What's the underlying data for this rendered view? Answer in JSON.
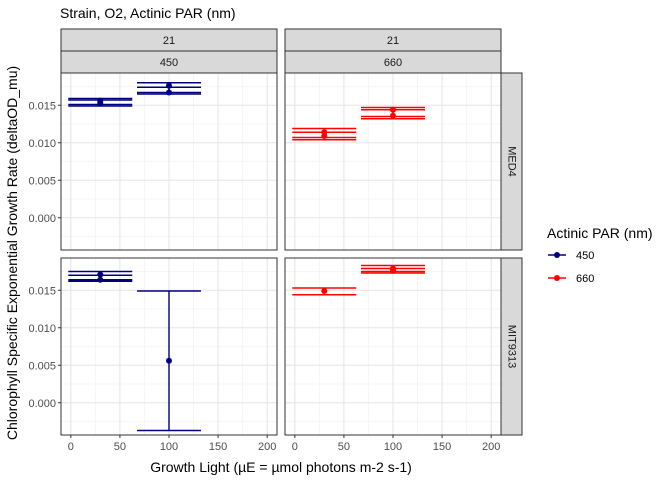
{
  "chart_data": {
    "type": "scatter",
    "title": "Strain, O2, Actinic PAR (nm)",
    "xlabel": "Growth Light (µE = µmol photons m-2 s-1)",
    "ylabel": "Chlorophyll Specific Exponential Growth Rate (deltaOD_mu)",
    "xlim": [
      -10,
      210
    ],
    "ylim": [
      -0.0043,
      0.0193
    ],
    "x_ticks": [
      "0",
      "50",
      "100",
      "150",
      "200"
    ],
    "x_tick_values": [
      0,
      50,
      100,
      150,
      200
    ],
    "y_ticks": [
      "0.000",
      "0.005",
      "0.010",
      "0.015"
    ],
    "y_tick_values": [
      0,
      0.005,
      0.01,
      0.015
    ],
    "grid": true,
    "legend": {
      "title": "Actinic PAR (nm)",
      "position": "right",
      "entries": [
        {
          "label": "450",
          "color": "#00007F"
        },
        {
          "label": "660",
          "color": "#FF0000"
        }
      ]
    },
    "columns": [
      {
        "o2": "21",
        "par": "450"
      },
      {
        "o2": "21",
        "par": "660"
      }
    ],
    "rows": [
      "MED4",
      "MIT9313"
    ],
    "panels": [
      {
        "row": 0,
        "col": 0,
        "par": "450",
        "errorbars": [
          {
            "x": 30,
            "ymin": 0.0149,
            "ymax": 0.0159
          },
          {
            "x": 30,
            "ymin": 0.0151,
            "ymax": 0.0157
          },
          {
            "x": 100,
            "ymin": 0.0165,
            "ymax": 0.018
          },
          {
            "x": 100,
            "ymin": 0.0167,
            "ymax": 0.0174
          }
        ],
        "points": [
          {
            "x": 30,
            "y": 0.0156
          },
          {
            "x": 30,
            "y": 0.0153
          },
          {
            "x": 100,
            "y": 0.0176
          },
          {
            "x": 100,
            "y": 0.0167
          }
        ]
      },
      {
        "row": 0,
        "col": 1,
        "par": "660",
        "errorbars": [
          {
            "x": 30,
            "ymin": 0.0104,
            "ymax": 0.0119
          },
          {
            "x": 30,
            "ymin": 0.0107,
            "ymax": 0.0114
          },
          {
            "x": 100,
            "ymin": 0.0132,
            "ymax": 0.0147
          },
          {
            "x": 100,
            "ymin": 0.0135,
            "ymax": 0.0144
          }
        ],
        "points": [
          {
            "x": 30,
            "y": 0.0114
          },
          {
            "x": 30,
            "y": 0.0109
          },
          {
            "x": 100,
            "y": 0.0144
          },
          {
            "x": 100,
            "y": 0.0136
          }
        ]
      },
      {
        "row": 1,
        "col": 0,
        "par": "450",
        "errorbars": [
          {
            "x": 30,
            "ymin": 0.0162,
            "ymax": 0.0175
          },
          {
            "x": 30,
            "ymin": 0.0164,
            "ymax": 0.017
          },
          {
            "x": 100,
            "ymin": -0.0037,
            "ymax": 0.0149
          }
        ],
        "points": [
          {
            "x": 30,
            "y": 0.0171
          },
          {
            "x": 30,
            "y": 0.0164
          },
          {
            "x": 100,
            "y": 0.0056
          }
        ]
      },
      {
        "row": 1,
        "col": 1,
        "par": "660",
        "errorbars": [
          {
            "x": 30,
            "ymin": 0.0144,
            "ymax": 0.0153
          },
          {
            "x": 100,
            "ymin": 0.0173,
            "ymax": 0.0183
          },
          {
            "x": 100,
            "ymin": 0.0175,
            "ymax": 0.0179
          }
        ],
        "points": [
          {
            "x": 30,
            "y": 0.0149
          },
          {
            "x": 100,
            "y": 0.0179
          },
          {
            "x": 100,
            "y": 0.0176
          }
        ]
      }
    ]
  }
}
